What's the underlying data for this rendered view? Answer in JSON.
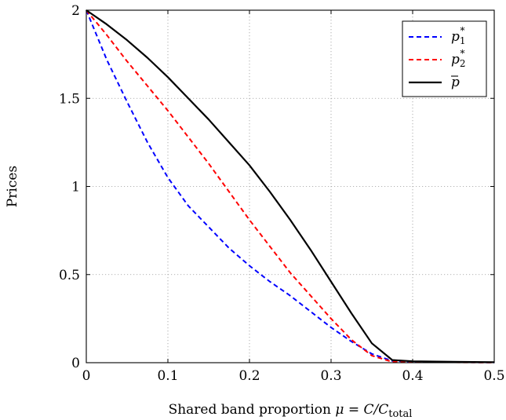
{
  "chart_data": {
    "type": "line",
    "xlabel": "Shared band proportion μ = C/C_total",
    "xlabel_parts": {
      "prefix": "Shared band proportion ",
      "mu": "μ",
      "eq": " = C/C",
      "sub": "total"
    },
    "ylabel": "Prices",
    "xlim": [
      0,
      0.5
    ],
    "ylim": [
      0,
      2
    ],
    "xticks": [
      0,
      0.1,
      0.2,
      0.3,
      0.4,
      0.5
    ],
    "xtick_labels": [
      "0",
      "0.1",
      "0.2",
      "0.3",
      "0.4",
      "0.5"
    ],
    "yticks": [
      0,
      0.5,
      1,
      1.5,
      2
    ],
    "ytick_labels": [
      "0",
      "0.5",
      "1",
      "1.5",
      "2"
    ],
    "grid": true,
    "legend_position": "top-right",
    "series": [
      {
        "name": "p1*",
        "legend_base": "p",
        "legend_sub": "1",
        "legend_sup": "*",
        "color": "#0000ff",
        "style": "dashed",
        "x": [
          0,
          0.025,
          0.05,
          0.075,
          0.1,
          0.125,
          0.15,
          0.175,
          0.2,
          0.225,
          0.25,
          0.275,
          0.3,
          0.325,
          0.35,
          0.375,
          0.4,
          0.45,
          0.5
        ],
        "y": [
          2.0,
          1.72,
          1.48,
          1.25,
          1.05,
          0.89,
          0.77,
          0.65,
          0.55,
          0.46,
          0.38,
          0.29,
          0.2,
          0.12,
          0.05,
          0.01,
          0.005,
          0.003,
          0.001
        ]
      },
      {
        "name": "p2*",
        "legend_base": "p",
        "legend_sub": "2",
        "legend_sup": "*",
        "color": "#ff0000",
        "style": "dashed",
        "x": [
          0,
          0.025,
          0.05,
          0.075,
          0.1,
          0.125,
          0.15,
          0.175,
          0.2,
          0.225,
          0.25,
          0.275,
          0.3,
          0.325,
          0.35,
          0.375,
          0.4,
          0.45,
          0.5
        ],
        "y": [
          2.0,
          1.86,
          1.71,
          1.57,
          1.43,
          1.28,
          1.13,
          0.97,
          0.81,
          0.66,
          0.51,
          0.38,
          0.25,
          0.13,
          0.04,
          0.005,
          0.004,
          0.002,
          0.001
        ]
      },
      {
        "name": "p̄",
        "legend_base": "p",
        "legend_bar": true,
        "color": "#000000",
        "style": "solid",
        "x": [
          0,
          0.025,
          0.05,
          0.075,
          0.1,
          0.125,
          0.15,
          0.175,
          0.2,
          0.225,
          0.25,
          0.275,
          0.3,
          0.325,
          0.35,
          0.375,
          0.4,
          0.45,
          0.5
        ],
        "y": [
          2.0,
          1.92,
          1.83,
          1.73,
          1.62,
          1.5,
          1.38,
          1.25,
          1.12,
          0.97,
          0.81,
          0.64,
          0.46,
          0.28,
          0.11,
          0.015,
          0.008,
          0.005,
          0.003
        ]
      }
    ]
  }
}
